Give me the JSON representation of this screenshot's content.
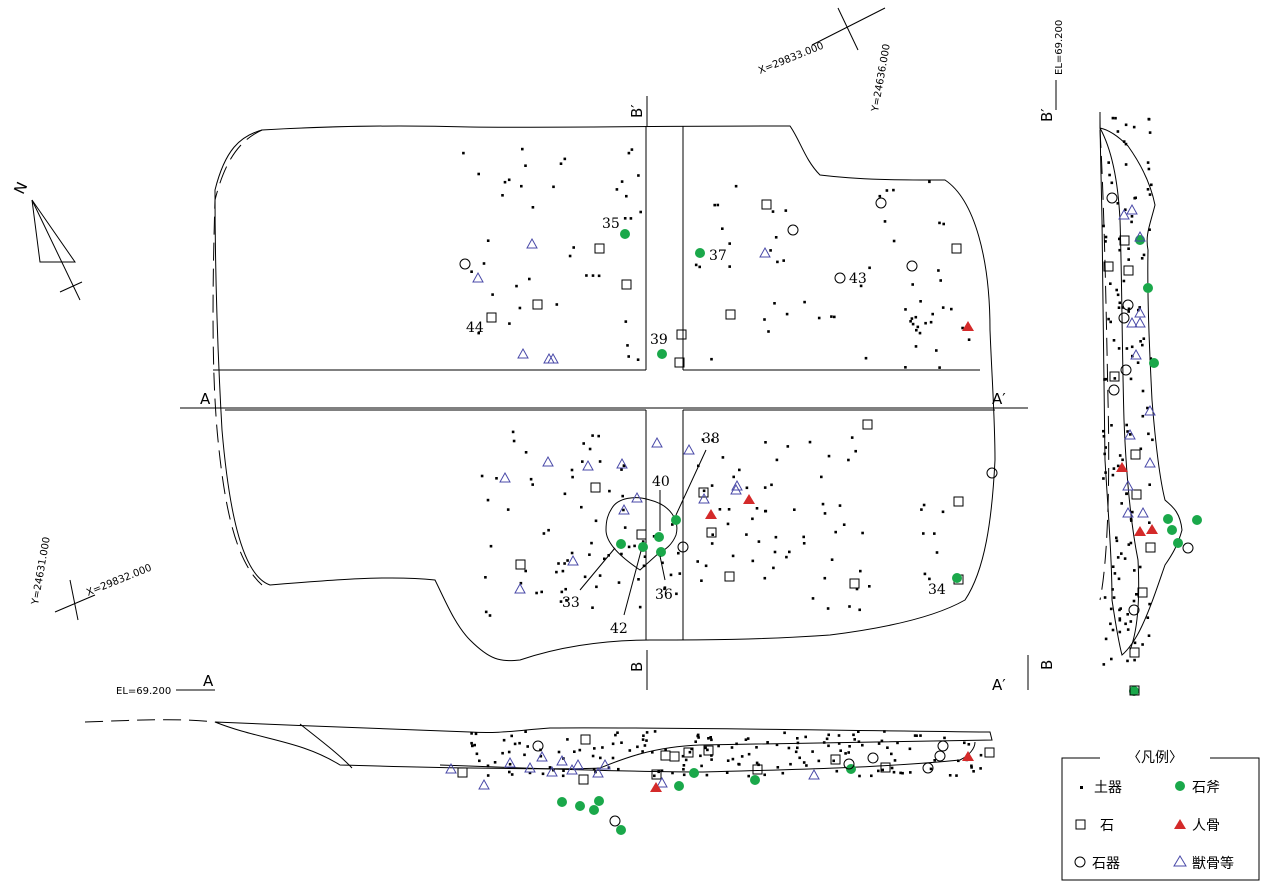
{
  "coords": {
    "x_top": "X=29833.000",
    "y_top": "Y=24636.000",
    "el_right": "EL=69.200",
    "y_left": "Y=24631.000",
    "x_left": "X=29832.000",
    "el_bottom": "EL=69.200"
  },
  "sections": {
    "a": "A",
    "a_prime": "A′",
    "b": "B",
    "b_prime": "B′"
  },
  "north": "N",
  "finds": {
    "n33": "33",
    "n34": "34",
    "n35": "35",
    "n36": "36",
    "n37": "37",
    "n38": "38",
    "n39": "39",
    "n40": "40",
    "n42": "42",
    "n43": "43",
    "n44": "44"
  },
  "legend": {
    "title": "〈凡例〉",
    "pottery": "土器",
    "stone": "石",
    "stone_tool": "石器",
    "stone_axe": "石斧",
    "human_bone": "人骨",
    "animal_bone": "獣骨等"
  },
  "colors": {
    "stone_axe": "#1aa84a",
    "human_bone": "#d42a2a",
    "animal_bone": "#4a4aa8",
    "line": "#000000"
  },
  "icons": {
    "pottery": "small-square-dot",
    "stone": "open-square",
    "stone_tool": "open-circle",
    "stone_axe": "filled-green-circle",
    "human_bone": "filled-red-triangle",
    "animal_bone": "open-blue-triangle"
  }
}
